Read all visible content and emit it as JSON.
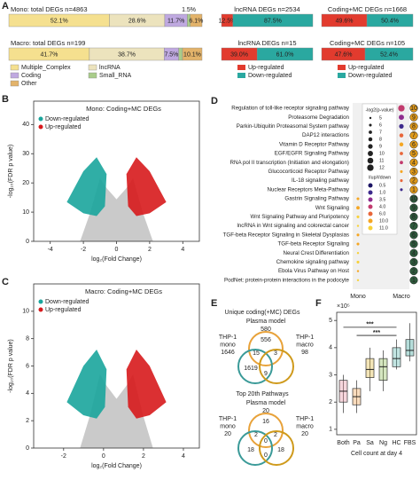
{
  "chart_data": [
    {
      "type": "stacked_hbar",
      "panel": "A",
      "composition": {
        "segments": [
          {
            "name": "Multiple_Complex",
            "color": "#f5e08f"
          },
          {
            "name": "lncRNA",
            "color": "#ece3bd"
          },
          {
            "name": "Coding",
            "color": "#bfa9e0"
          },
          {
            "name": "Small_RNA",
            "color": "#a9cc8a"
          },
          {
            "name": "Other",
            "color": "#e3b36a"
          }
        ],
        "bars": [
          {
            "title": "Mono: total DEGs n=4863",
            "values": [
              52.1,
              28.6,
              11.7,
              1.5,
              6.1
            ],
            "value_labels": [
              "52.1%",
              "28.6%",
              "11.7%",
              "1.5%",
              "6.1%"
            ]
          },
          {
            "title": "Macro: total DEGs n=199",
            "values": [
              41.7,
              38.7,
              7.5,
              2.0,
              10.1
            ],
            "value_labels": [
              "41.7%",
              "38.7%",
              "7.5%",
              null,
              "10.1%"
            ]
          }
        ]
      },
      "regulation": {
        "segments": [
          {
            "name": "Up-regulated",
            "color": "#e23b2e"
          },
          {
            "name": "Down-regulated",
            "color": "#2aa8a0"
          }
        ],
        "bars": [
          {
            "title": "lncRNA DEGs n=2534",
            "values": [
              12.5,
              87.5
            ],
            "value_labels": [
              "12.5%",
              "87.5%"
            ]
          },
          {
            "title": "Coding+MC DEGs n=1668",
            "values": [
              49.6,
              50.4
            ],
            "value_labels": [
              "49.6%",
              "50.4%"
            ]
          },
          {
            "title": "lncRNA DEGs n=15",
            "values": [
              39.0,
              61.0
            ],
            "value_labels": [
              "39.0%",
              "61.0%"
            ]
          },
          {
            "title": "Coding+MC DEGs n=105",
            "values": [
              47.6,
              52.4
            ],
            "value_labels": [
              "47.6%",
              "52.4%"
            ]
          }
        ]
      }
    },
    {
      "type": "volcano",
      "panel": "B",
      "title": "Mono: Coding+MC DEGs",
      "legend": [
        {
          "name": "Down-regulated",
          "color": "#1aa59c"
        },
        {
          "name": "Up-regulated",
          "color": "#d7191c"
        }
      ],
      "cloud_color": "#c4c4c4",
      "xlabel": "log₂(Fold Change)",
      "ylabel": "-log₁₀(FDR p value)",
      "xlim": [
        -5,
        5
      ],
      "xticks": [
        -4,
        -2,
        0,
        2,
        4
      ],
      "ylim": [
        0,
        48
      ],
      "yticks": [
        0,
        10,
        20,
        30,
        40
      ]
    },
    {
      "type": "volcano",
      "panel": "C",
      "title": "Macro: Coding+MC DEGs",
      "legend": [
        {
          "name": "Down-regulated",
          "color": "#1aa59c"
        },
        {
          "name": "Up-regulated",
          "color": "#d7191c"
        }
      ],
      "cloud_color": "#c4c4c4",
      "xlabel": "log₂(Fold Change)",
      "ylabel": "-log₁₀(FDR p value)",
      "xlim": [
        -3.5,
        4.8
      ],
      "xticks": [
        -2,
        0,
        2,
        4
      ],
      "ylim": [
        0,
        12
      ],
      "yticks": [
        0,
        2,
        4,
        6,
        8,
        10
      ]
    },
    {
      "type": "dot",
      "panel": "D",
      "rows": [
        "Regulation of toll-like receptor signaling pathway",
        "Proteasome Degradation",
        "Parkin-Ubiquitin Proteasomal System pathway",
        "DAP12 interactions",
        "Vitamin D Receptor Pathway",
        "EGF/EGFR Signaling Pathway",
        "RNA pol II transcription (Initiation and elongation)",
        "Glucocorticoid Receptor Pathway",
        "IL-18 signaling pathway",
        "Nuclear Receptors Meta-Pathway",
        "Gastrin Signaling Pathway",
        "Wnt Signaling",
        "Wnt Signaling Pathway and Pluripotency",
        "lncRNA in Wnt signaling and colorectal cancer",
        "TGF-beta Receptor Signaling in Skeletal Dysplasias",
        "TGF-beta Receptor Signaling",
        "Neural Crest Differentiation",
        "Chemokine signaling pathway",
        "Ebola Virus Pathway on Host",
        "PodNet: protein-protein interactions in the podocyte"
      ],
      "series": [
        {
          "name": "Mono",
          "color": "#d9a81e",
          "rank_color": "#2e5a3c",
          "values": [
            null,
            null,
            null,
            null,
            null,
            null,
            null,
            null,
            null,
            null,
            6,
            7,
            6,
            5,
            6,
            6,
            5,
            6,
            5,
            5
          ],
          "ratios": [
            null,
            null,
            null,
            null,
            null,
            null,
            null,
            null,
            null,
            null,
            10.0,
            10.0,
            11.0,
            11.0,
            10.0,
            10.0,
            11.0,
            11.0,
            10.0,
            11.0
          ],
          "ranks": [
            null,
            null,
            null,
            null,
            null,
            null,
            null,
            null,
            null,
            null,
            10,
            9,
            8,
            7,
            6,
            5,
            4,
            3,
            2,
            1
          ]
        },
        {
          "name": "Macro",
          "color": "#c8780f",
          "rank_color": "#e09a1a",
          "values": [
            12,
            10,
            9,
            8,
            8,
            7,
            7,
            6,
            6,
            6,
            null,
            null,
            null,
            null,
            null,
            null,
            null,
            null,
            null,
            null
          ],
          "ratios": [
            4.0,
            3.5,
            1.0,
            6.0,
            10.0,
            6.0,
            4.0,
            10.0,
            6.0,
            1.0,
            null,
            null,
            null,
            null,
            null,
            null,
            null,
            null,
            null,
            null
          ],
          "ranks": [
            10,
            9,
            8,
            7,
            6,
            5,
            4,
            3,
            2,
            1,
            null,
            null,
            null,
            null,
            null,
            null,
            null,
            null,
            null,
            null
          ]
        }
      ],
      "size_legend": {
        "title": "-log2(p-value)",
        "values": [
          5,
          6,
          7,
          8,
          9,
          10,
          11,
          12
        ]
      },
      "color_legend": {
        "title": "#up/#down",
        "values": [
          0.5,
          1.0,
          3.5,
          4.0,
          6.0,
          10.0,
          11.0
        ],
        "value_labels": [
          "0.5",
          "1.0",
          "3.5",
          "4.0",
          "6.0",
          "10.0",
          "11.0"
        ],
        "colors": [
          "#1b1464",
          "#3d2a8c",
          "#8e2c8e",
          "#c23b6e",
          "#e8663a",
          "#f5a623",
          "#f7d13a"
        ]
      }
    },
    {
      "type": "venn",
      "panel": "E",
      "sections": [
        {
          "title": "Unique coding(+MC) DEGs",
          "plasma": {
            "label": "Plasma model",
            "count": 580,
            "color": "#e8a23a"
          },
          "mono": {
            "lines": [
              "THP-1",
              "mono"
            ],
            "count": 1646,
            "color": "#3a9a98"
          },
          "macro": {
            "lines": [
              "THP-1",
              "macro"
            ],
            "count": 98,
            "color": "#cf9a1c"
          },
          "regions": [
            556,
            15,
            3,
            1619,
            null,
            9,
            null
          ]
        },
        {
          "title": "Top 20th Pathways",
          "plasma": {
            "label": "Plasma model",
            "count": 20,
            "color": "#e8a23a"
          },
          "mono": {
            "lines": [
              "THP-1",
              "mono"
            ],
            "count": 20,
            "color": "#3a9a98"
          },
          "macro": {
            "lines": [
              "THP-1",
              "macro"
            ],
            "count": 20,
            "color": "#cf9a1c"
          },
          "regions": [
            16,
            2,
            2,
            18,
            0,
            0,
            18
          ]
        }
      ]
    },
    {
      "type": "box",
      "panel": "F",
      "y_multiplier": "×10⁵",
      "xlabel": "Cell count at day 4",
      "categories": [
        "Both",
        "Pa",
        "Sa",
        "Ng",
        "HC",
        "FBS"
      ],
      "colors": [
        "#e58a9c",
        "#ef9a45",
        "#dcb532",
        "#86b84a",
        "#4fb3aa",
        "#2f9e94"
      ],
      "min": [
        1.6,
        1.6,
        2.4,
        2.4,
        3.2,
        3.5
      ],
      "q1": [
        2.0,
        1.9,
        2.9,
        2.8,
        3.3,
        3.7
      ],
      "median": [
        2.4,
        2.2,
        3.2,
        3.3,
        3.6,
        3.9
      ],
      "q3": [
        2.8,
        2.5,
        3.6,
        3.6,
        4.0,
        4.3
      ],
      "max": [
        3.0,
        2.8,
        4.0,
        3.9,
        4.3,
        4.9
      ],
      "ylim": [
        0.8,
        5.3
      ],
      "yticks": [
        1,
        2,
        3,
        4,
        5
      ],
      "significance": [
        {
          "from": 0,
          "to": 4,
          "y": 4.75,
          "label": "***"
        },
        {
          "from": 1,
          "to": 4,
          "y": 4.45,
          "label": "***"
        }
      ]
    }
  ]
}
